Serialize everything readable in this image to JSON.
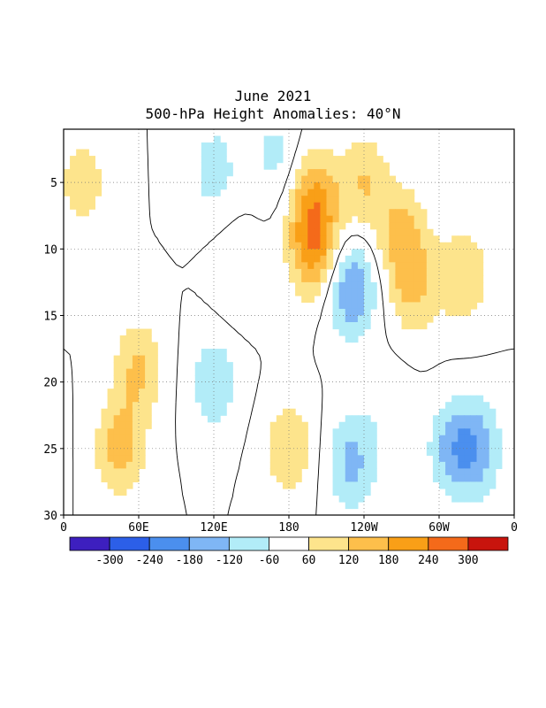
{
  "chart_data": {
    "type": "heatmap",
    "title": "June 2021",
    "subtitle": "500-hPa Height Anomalies: 40°N",
    "x_ticks": [
      "0",
      "60E",
      "120E",
      "180",
      "120W",
      "60W",
      "0"
    ],
    "y_ticks": [
      "5",
      "10",
      "15",
      "20",
      "25",
      "30"
    ],
    "ylim": [
      1,
      30
    ],
    "x_range_deg": [
      0,
      360
    ],
    "grid": true,
    "colorbar": {
      "labels": [
        "-300",
        "-240",
        "-180",
        "-120",
        "-60",
        "60",
        "120",
        "180",
        "240",
        "300"
      ],
      "colors": [
        "#3d1fbf",
        "#2c5fe8",
        "#4b8fee",
        "#7fb6f5",
        "#b2ecf8",
        "#ffffff",
        "#fde48c",
        "#fdbf4b",
        "#f99f17",
        "#f46a1a",
        "#c8140d"
      ]
    },
    "contour_label": "0",
    "features": [
      {
        "lon": 140,
        "day": 12,
        "value": 60
      },
      {
        "lon": 200,
        "day": 6,
        "value": 160
      },
      {
        "lon": 200,
        "day": 10,
        "value": 210
      },
      {
        "lon": 270,
        "day": 9,
        "value": 140
      },
      {
        "lon": 280,
        "day": 13,
        "value": 120
      },
      {
        "lon": 260,
        "day": 22,
        "value": -40
      },
      {
        "lon": 170,
        "day": 3,
        "value": -80
      },
      {
        "lon": 330,
        "day": 25,
        "value": -150
      },
      {
        "lon": 240,
        "day": 5,
        "value": 120
      },
      {
        "lon": 230,
        "day": 13,
        "value": -190
      },
      {
        "lon": 230,
        "day": 26,
        "value": -140
      },
      {
        "lon": 310,
        "day": 25,
        "value": -120
      },
      {
        "lon": 320,
        "day": 12,
        "value": 120
      },
      {
        "lon": 60,
        "day": 19,
        "value": 130
      },
      {
        "lon": 45,
        "day": 25,
        "value": 150
      },
      {
        "lon": 180,
        "day": 25,
        "value": 120
      },
      {
        "lon": 120,
        "day": 20,
        "value": -110
      },
      {
        "lon": 120,
        "day": 4,
        "value": -90
      },
      {
        "lon": 15,
        "day": 5,
        "value": 100
      }
    ]
  }
}
